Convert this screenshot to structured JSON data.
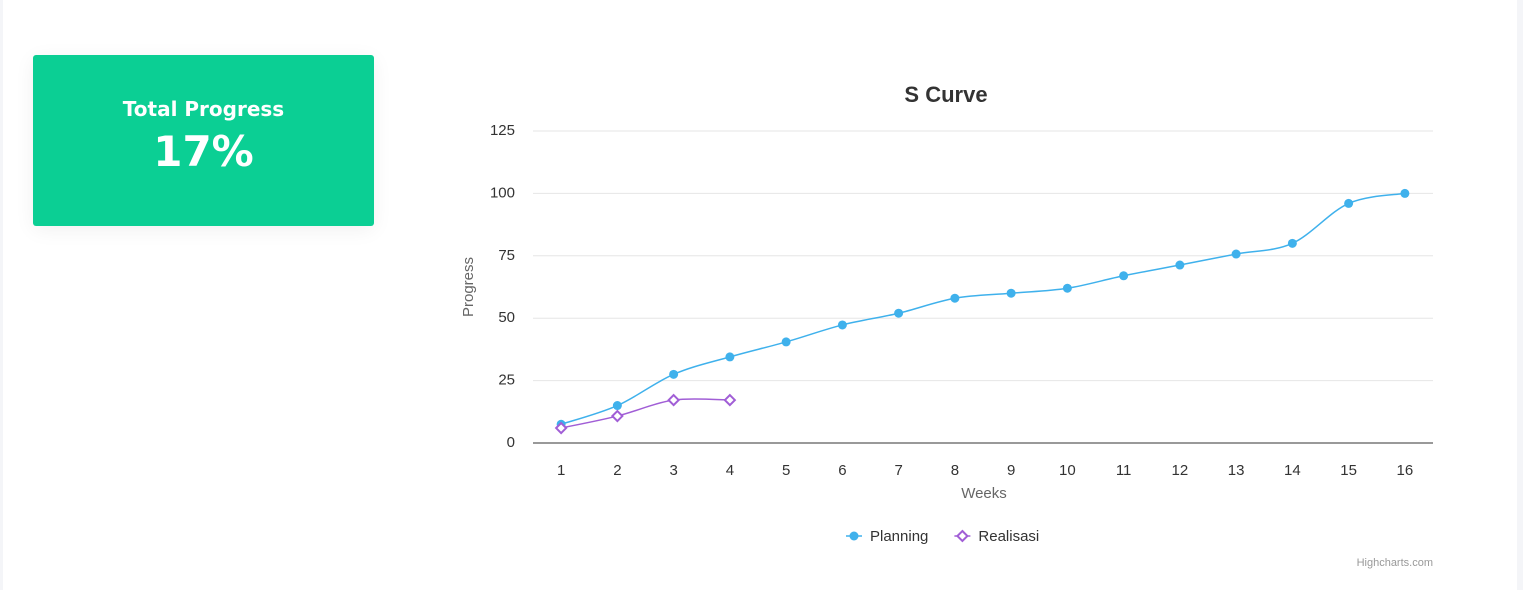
{
  "card": {
    "title": "Total Progress",
    "value": "17%"
  },
  "chart_data": {
    "type": "line",
    "title": "S Curve",
    "x_label": "Weeks",
    "y_label": "Progress",
    "categories": [
      "1",
      "2",
      "3",
      "4",
      "5",
      "6",
      "7",
      "8",
      "9",
      "10",
      "11",
      "12",
      "13",
      "14",
      "15",
      "16"
    ],
    "series": [
      {
        "name": "Planning",
        "color": "#3fb1ec",
        "marker": "circle",
        "values": [
          7.5,
          15,
          27.5,
          34.5,
          40.5,
          47.3,
          52,
          58,
          60,
          62,
          67,
          71.3,
          75.7,
          80,
          96,
          100
        ]
      },
      {
        "name": "Realisasi",
        "color": "#a15ed6",
        "marker": "diamond",
        "values": [
          6,
          10.8,
          17.2,
          17.2,
          null,
          null,
          null,
          null,
          null,
          null,
          null,
          null,
          null,
          null,
          null,
          null
        ]
      }
    ],
    "ylim": [
      0,
      125
    ],
    "yticks": [
      0,
      25,
      50,
      75,
      100,
      125
    ],
    "grid": true,
    "legend": "bottom",
    "credits": "Highcharts.com"
  }
}
